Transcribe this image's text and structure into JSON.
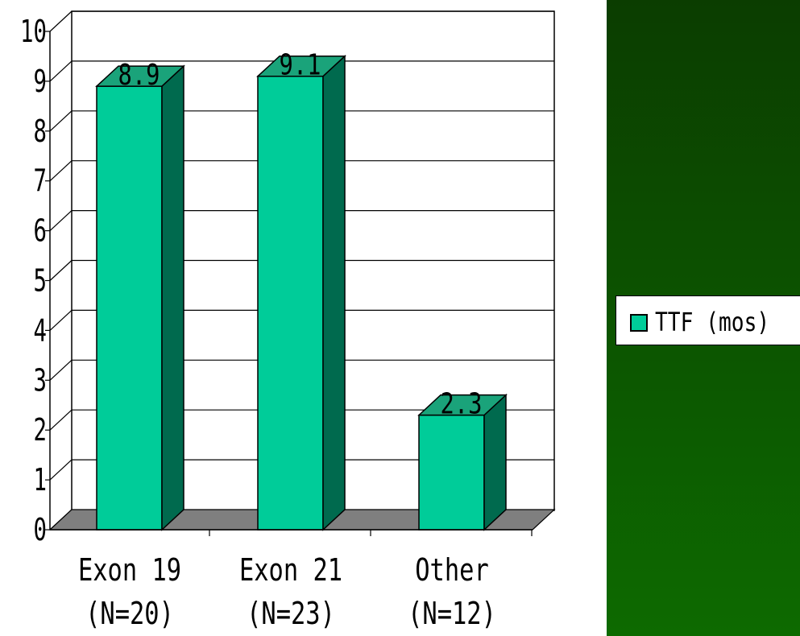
{
  "colors": {
    "panel_top": "#0b3d00",
    "panel_bottom": "#0d6a00",
    "bar_front": "#00cc99",
    "bar_top": "#1aa37a",
    "bar_side": "#006a4e",
    "floor": "#7f7f7f"
  },
  "legend": {
    "label": "TTF (mos)"
  },
  "chart_data": {
    "type": "bar",
    "categories": [
      "Exon 19",
      "Exon 21",
      "Other"
    ],
    "category_sublabels": [
      "(N=20)",
      "(N=23)",
      "(N=12)"
    ],
    "series": [
      {
        "name": "TTF (mos)",
        "values": [
          8.9,
          9.1,
          2.3
        ],
        "labels": [
          "8.9",
          "9.1",
          "2.3"
        ]
      }
    ],
    "ylim": [
      0,
      10
    ],
    "yticks": [
      "0",
      "1",
      "2",
      "3",
      "4",
      "5",
      "6",
      "7",
      "8",
      "9",
      "10"
    ],
    "grid": true,
    "three_d": true,
    "legend_position": "right"
  }
}
